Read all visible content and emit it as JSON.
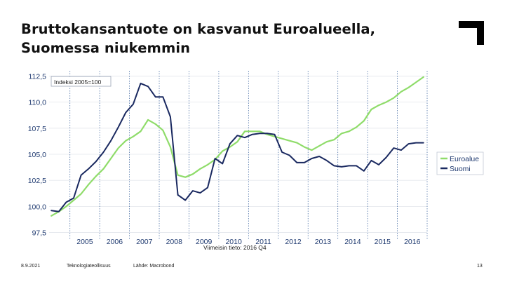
{
  "slide": {
    "title_line1": "Bruttokansantuote on kasvanut Euroalueella,",
    "title_line2": "Suomessa niukemmin",
    "footer": {
      "date": "8.9.2021",
      "organization": "Teknologiateollisuus",
      "source": "Lähde: Macrobond",
      "page_number": "13"
    }
  },
  "chart_data": {
    "type": "line",
    "title": "Bruttokansantuote on kasvanut Euroalueella, Suomessa niukemmin",
    "index_label": "Indeksi 2005=100",
    "note": "Viimeisin tieto: 2016 Q4",
    "ylim": [
      96.8,
      113.0
    ],
    "yticks": [
      97.5,
      100.0,
      102.5,
      105.0,
      107.5,
      110.0,
      112.5
    ],
    "ytick_labels": [
      "97,5",
      "100,0",
      "102,5",
      "105,0",
      "107,5",
      "110,0",
      "112,5"
    ],
    "xlim": [
      2004.3,
      2017.0
    ],
    "xticks": [
      2005,
      2006,
      2007,
      2008,
      2009,
      2010,
      2011,
      2012,
      2013,
      2014,
      2015,
      2016
    ],
    "xtick_labels": [
      "2005",
      "2006",
      "2007",
      "2008",
      "2009",
      "2010",
      "2011",
      "2012",
      "2013",
      "2014",
      "2015",
      "2016"
    ],
    "year_dividers": [
      2005,
      2006,
      2007,
      2008,
      2009,
      2010,
      2011,
      2012,
      2013,
      2014,
      2015,
      2016,
      2017
    ],
    "grid": true,
    "legend_position": "right",
    "x": [
      2004.375,
      2004.625,
      2004.875,
      2005.125,
      2005.375,
      2005.625,
      2005.875,
      2006.125,
      2006.375,
      2006.625,
      2006.875,
      2007.125,
      2007.375,
      2007.625,
      2007.875,
      2008.125,
      2008.375,
      2008.625,
      2008.875,
      2009.125,
      2009.375,
      2009.625,
      2009.875,
      2010.125,
      2010.375,
      2010.625,
      2010.875,
      2011.125,
      2011.375,
      2011.625,
      2011.875,
      2012.125,
      2012.375,
      2012.625,
      2012.875,
      2013.125,
      2013.375,
      2013.625,
      2013.875,
      2014.125,
      2014.375,
      2014.625,
      2014.875,
      2015.125,
      2015.375,
      2015.625,
      2015.875,
      2016.125,
      2016.375,
      2016.625,
      2016.875
    ],
    "series": [
      {
        "name": "Euroalue",
        "color": "#8fdc6a",
        "values": [
          99.1,
          99.5,
          100.0,
          100.6,
          101.2,
          102.1,
          102.9,
          103.6,
          104.6,
          105.6,
          106.3,
          106.7,
          107.2,
          108.3,
          107.9,
          107.3,
          105.7,
          103.0,
          102.8,
          103.1,
          103.6,
          104.0,
          104.5,
          105.3,
          105.7,
          106.2,
          107.2,
          107.2,
          107.2,
          106.9,
          106.7,
          106.5,
          106.3,
          106.1,
          105.7,
          105.4,
          105.8,
          106.2,
          106.4,
          107.0,
          107.2,
          107.6,
          108.2,
          109.3,
          109.7,
          110.0,
          110.4,
          111.0,
          111.4,
          111.9,
          112.4
        ]
      },
      {
        "name": "Suomi",
        "color": "#1a2960",
        "values": [
          99.6,
          99.5,
          100.4,
          100.8,
          103.0,
          103.6,
          104.3,
          105.2,
          106.3,
          107.6,
          109.0,
          109.8,
          111.8,
          111.5,
          110.5,
          110.5,
          108.6,
          101.1,
          100.6,
          101.5,
          101.3,
          101.8,
          104.6,
          104.1,
          106.0,
          106.8,
          106.6,
          106.9,
          107.0,
          107.0,
          106.9,
          105.2,
          104.9,
          104.2,
          104.2,
          104.6,
          104.8,
          104.4,
          103.9,
          103.8,
          103.9,
          103.9,
          103.4,
          104.4,
          104.0,
          104.7,
          105.6,
          105.4,
          106.0,
          106.1,
          106.1
        ]
      }
    ]
  }
}
